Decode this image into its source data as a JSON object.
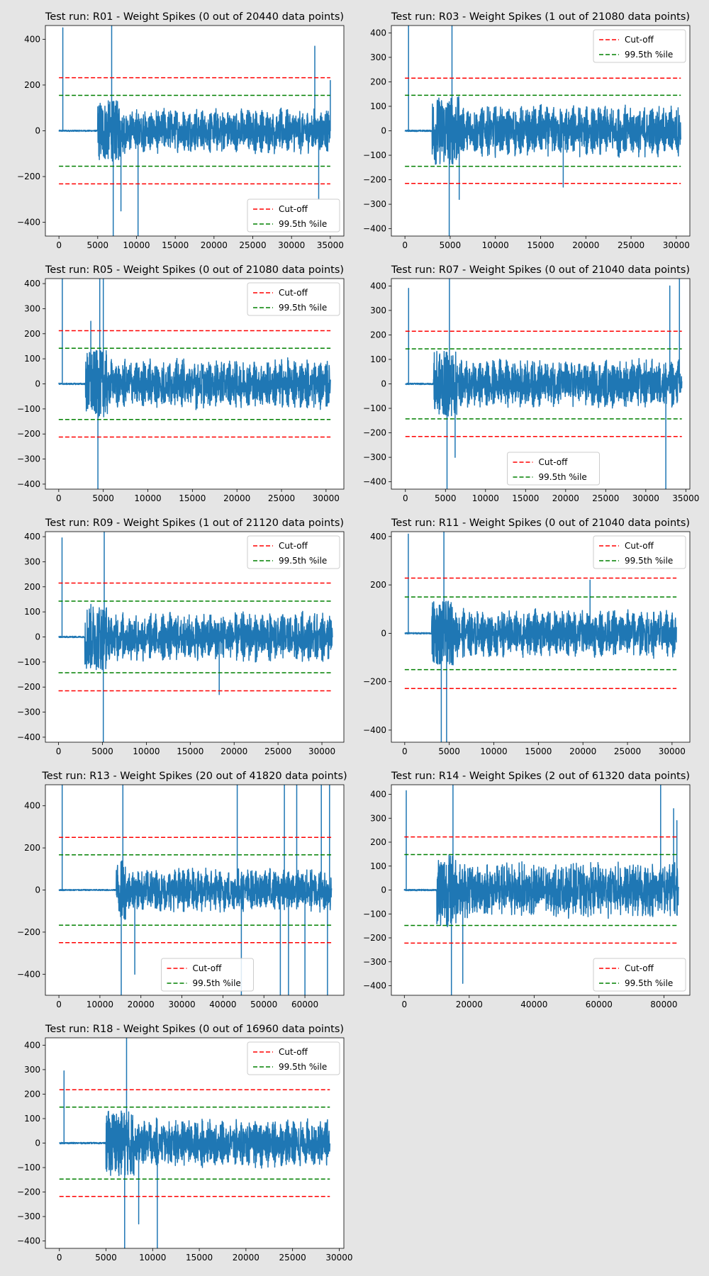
{
  "figure": {
    "background": "#e5e5e5"
  },
  "legend_labels": {
    "cutoff": "Cut-off",
    "percentile": "99.5th %ile"
  },
  "colors": {
    "signal": "#1f77b4",
    "cutoff": "#ff0000",
    "percentile": "#008000"
  },
  "chart_data": [
    {
      "type": "line",
      "title": "Test run: R01 - Weight Spikes (0 out of 20440 data points)",
      "xlim": [
        -1750,
        36750
      ],
      "ylim": [
        -460,
        460
      ],
      "xticks": [
        0,
        5000,
        10000,
        15000,
        20000,
        25000,
        30000,
        35000
      ],
      "yticks": [
        -400,
        -200,
        0,
        200,
        400
      ],
      "cutoff": 232,
      "percentile": 155,
      "legend": "bottom-right",
      "series": [
        {
          "x_end": 35000,
          "amplitude": 95,
          "cycles": 32,
          "flat_end": 5000,
          "burst": [
            5000,
            8000
          ],
          "spikes": [
            [
              500,
              450
            ],
            [
              6800,
              460
            ],
            [
              7000,
              -460
            ],
            [
              10200,
              -460
            ],
            [
              8000,
              -350
            ],
            [
              33000,
              370
            ],
            [
              33500,
              -300
            ],
            [
              35000,
              220
            ]
          ]
        }
      ]
    },
    {
      "type": "line",
      "title": "Test run: R03 - Weight Spikes (1 out of 21080 data points)",
      "xlim": [
        -1500,
        31500
      ],
      "ylim": [
        -430,
        430
      ],
      "xticks": [
        0,
        5000,
        10000,
        15000,
        20000,
        25000,
        30000
      ],
      "yticks": [
        -400,
        -300,
        -200,
        -100,
        0,
        100,
        200,
        300,
        400
      ],
      "cutoff": 215,
      "percentile": 145,
      "legend": "top-right",
      "series": [
        {
          "x_end": 30500,
          "amplitude": 100,
          "cycles": 34,
          "flat_end": 3000,
          "burst": [
            3500,
            6000
          ],
          "spikes": [
            [
              400,
              430
            ],
            [
              4900,
              -430
            ],
            [
              5200,
              430
            ],
            [
              6000,
              -280
            ],
            [
              17500,
              -230
            ]
          ]
        }
      ]
    },
    {
      "type": "line",
      "title": "Test run: R05 - Weight Spikes (0 out of 21080 data points)",
      "xlim": [
        -1500,
        32000
      ],
      "ylim": [
        -420,
        420
      ],
      "xticks": [
        0,
        5000,
        10000,
        15000,
        20000,
        25000,
        30000
      ],
      "yticks": [
        -400,
        -300,
        -200,
        -100,
        0,
        100,
        200,
        300,
        400
      ],
      "cutoff": 212,
      "percentile": 142,
      "legend": "top-right",
      "series": [
        {
          "x_end": 30500,
          "amplitude": 95,
          "cycles": 34,
          "flat_end": 3000,
          "burst": [
            3500,
            5500
          ],
          "spikes": [
            [
              400,
              420
            ],
            [
              4400,
              -420
            ],
            [
              4600,
              420
            ],
            [
              5000,
              420
            ],
            [
              3600,
              250
            ]
          ]
        }
      ]
    },
    {
      "type": "line",
      "title": "Test run: R07 - Weight Spikes (0 out of 21040 data points)",
      "xlim": [
        -1750,
        35500
      ],
      "ylim": [
        -430,
        430
      ],
      "xticks": [
        0,
        5000,
        10000,
        15000,
        20000,
        25000,
        30000,
        35000
      ],
      "yticks": [
        -400,
        -300,
        -200,
        -100,
        0,
        100,
        200,
        300,
        400
      ],
      "cutoff": 215,
      "percentile": 143,
      "legend": "bottom-center",
      "series": [
        {
          "x_end": 34500,
          "amplitude": 95,
          "cycles": 34,
          "flat_end": 3500,
          "burst": [
            4000,
            6500
          ],
          "spikes": [
            [
              400,
              390
            ],
            [
              5200,
              -430
            ],
            [
              5500,
              430
            ],
            [
              6200,
              -300
            ],
            [
              32500,
              -430
            ],
            [
              34200,
              430
            ],
            [
              33000,
              400
            ]
          ]
        }
      ]
    },
    {
      "type": "line",
      "title": "Test run: R09 - Weight Spikes (1 out of 21120 data points)",
      "xlim": [
        -1500,
        32500
      ],
      "ylim": [
        -420,
        420
      ],
      "xticks": [
        0,
        5000,
        10000,
        15000,
        20000,
        25000,
        30000
      ],
      "yticks": [
        -400,
        -300,
        -200,
        -100,
        0,
        100,
        200,
        300,
        400
      ],
      "cutoff": 215,
      "percentile": 143,
      "legend": "top-right",
      "series": [
        {
          "x_end": 31200,
          "amplitude": 95,
          "cycles": 34,
          "flat_end": 3000,
          "burst": [
            3500,
            5500
          ],
          "spikes": [
            [
              400,
              395
            ],
            [
              5100,
              -420
            ],
            [
              5200,
              420
            ],
            [
              18300,
              -230
            ]
          ]
        }
      ]
    },
    {
      "type": "line",
      "title": "Test run: R11 - Weight Spikes (0 out of 21040 data points)",
      "xlim": [
        -1500,
        32000
      ],
      "ylim": [
        -450,
        420
      ],
      "xticks": [
        0,
        5000,
        10000,
        15000,
        20000,
        25000,
        30000
      ],
      "yticks": [
        -400,
        -200,
        0,
        200,
        400
      ],
      "cutoff": 228,
      "percentile": 150,
      "legend": "top-right",
      "series": [
        {
          "x_end": 30500,
          "amplitude": 95,
          "cycles": 34,
          "flat_end": 3000,
          "burst": [
            3500,
            5500
          ],
          "spikes": [
            [
              400,
              410
            ],
            [
              4100,
              -450
            ],
            [
              4400,
              420
            ],
            [
              4700,
              -450
            ],
            [
              20800,
              220
            ]
          ]
        }
      ]
    },
    {
      "type": "line",
      "title": "Test run: R13 - Weight Spikes (20 out of 41820 data points)",
      "xlim": [
        -3300,
        69500
      ],
      "ylim": [
        -500,
        500
      ],
      "xticks": [
        0,
        10000,
        20000,
        30000,
        40000,
        50000,
        60000
      ],
      "yticks": [
        -400,
        -200,
        0,
        200,
        400
      ],
      "cutoff": 250,
      "percentile": 167,
      "legend": "bottom-center",
      "series": [
        {
          "x_end": 66500,
          "amplitude": 100,
          "cycles": 45,
          "flat_end": 14000,
          "burst": [
            14500,
            16500
          ],
          "spikes": [
            [
              800,
              500
            ],
            [
              15200,
              -500
            ],
            [
              15600,
              500
            ],
            [
              18500,
              -400
            ],
            [
              43500,
              500
            ],
            [
              44500,
              -500
            ],
            [
              54000,
              -500
            ],
            [
              55000,
              500
            ],
            [
              56000,
              -500
            ],
            [
              58000,
              500
            ],
            [
              60000,
              -500
            ],
            [
              64000,
              500
            ],
            [
              65500,
              -500
            ],
            [
              66000,
              500
            ]
          ]
        }
      ]
    },
    {
      "type": "line",
      "title": "Test run: R14 - Weight Spikes (2 out of 61320 data points)",
      "xlim": [
        -4000,
        88000
      ],
      "ylim": [
        -440,
        440
      ],
      "xticks": [
        0,
        20000,
        40000,
        60000,
        80000
      ],
      "yticks": [
        -400,
        -300,
        -200,
        -100,
        0,
        100,
        200,
        300,
        400
      ],
      "cutoff": 222,
      "percentile": 148,
      "legend": "bottom-right",
      "series": [
        {
          "x_end": 84500,
          "amplitude": 110,
          "cycles": 90,
          "flat_end": 10000,
          "burst": [
            11000,
            16000
          ],
          "spikes": [
            [
              600,
              415
            ],
            [
              14500,
              -440
            ],
            [
              15000,
              440
            ],
            [
              18000,
              -390
            ],
            [
              79000,
              440
            ],
            [
              83000,
              340
            ],
            [
              84000,
              290
            ]
          ]
        }
      ]
    },
    {
      "type": "line",
      "title": "Test run: R18 - Weight Spikes (0 out of 16960 data points)",
      "xlim": [
        -1500,
        30500
      ],
      "ylim": [
        -430,
        430
      ],
      "xticks": [
        0,
        5000,
        10000,
        15000,
        20000,
        25000,
        30000
      ],
      "yticks": [
        -400,
        -300,
        -200,
        -100,
        0,
        100,
        200,
        300,
        400
      ],
      "cutoff": 218,
      "percentile": 147,
      "legend": "top-right",
      "series": [
        {
          "x_end": 29000,
          "amplitude": 95,
          "cycles": 30,
          "flat_end": 5000,
          "burst": [
            5500,
            8000
          ],
          "spikes": [
            [
              500,
              295
            ],
            [
              7000,
              -430
            ],
            [
              7200,
              430
            ],
            [
              8500,
              -330
            ],
            [
              10500,
              -430
            ]
          ]
        }
      ]
    }
  ]
}
